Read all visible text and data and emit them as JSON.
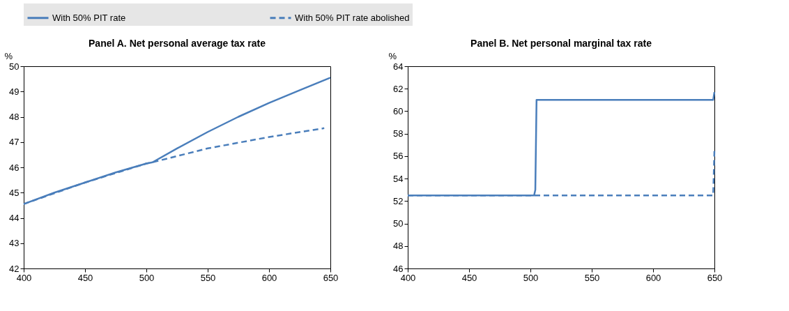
{
  "chart_data": [
    {
      "type": "line",
      "title": "Panel A. Net personal average tax rate",
      "ylabel": "%",
      "legend": "top",
      "grid": false,
      "xlim": [
        400,
        650
      ],
      "xticks": [
        400,
        450,
        500,
        550,
        600,
        650
      ],
      "ylim": [
        42,
        50
      ],
      "yticks": [
        42,
        43,
        44,
        45,
        46,
        47,
        48,
        49,
        50
      ],
      "series": [
        {
          "name": "With 50% PIT rate",
          "color": "#4a7ebb",
          "line_style": "solid",
          "x": [
            400,
            425,
            450,
            475,
            500,
            505,
            525,
            550,
            575,
            600,
            625,
            650
          ],
          "values": [
            44.55,
            45.0,
            45.4,
            45.8,
            46.15,
            46.2,
            46.75,
            47.4,
            48.0,
            48.55,
            49.05,
            49.55
          ]
        },
        {
          "name": "With 50% PIT rate abolished",
          "color": "#4a7ebb",
          "line_style": "dashed",
          "x": [
            400,
            450,
            500,
            505,
            550,
            600,
            645
          ],
          "values": [
            44.55,
            45.4,
            46.15,
            46.2,
            46.75,
            47.2,
            47.55
          ]
        }
      ]
    },
    {
      "type": "line",
      "title": "Panel B. Net personal marginal tax rate",
      "ylabel": "%",
      "legend": "top",
      "grid": false,
      "xlim": [
        400,
        650
      ],
      "xticks": [
        400,
        450,
        500,
        550,
        600,
        650
      ],
      "ylim": [
        46,
        64
      ],
      "yticks": [
        46,
        48,
        50,
        52,
        54,
        56,
        58,
        60,
        62,
        64
      ],
      "series": [
        {
          "name": "With 50% PIT rate",
          "color": "#4a7ebb",
          "line_style": "solid",
          "x": [
            400,
            503,
            504,
            505,
            649,
            650
          ],
          "values": [
            52.5,
            52.5,
            53.0,
            61.0,
            61.0,
            61.7
          ]
        },
        {
          "name": "With 50% PIT rate abolished",
          "color": "#4a7ebb",
          "line_style": "dashed",
          "x": [
            400,
            649,
            650
          ],
          "values": [
            52.5,
            52.5,
            56.5
          ]
        }
      ]
    }
  ]
}
